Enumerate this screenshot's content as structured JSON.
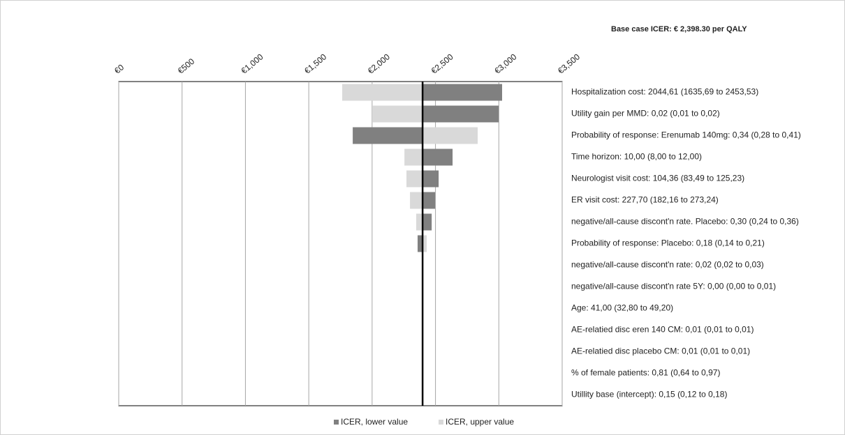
{
  "chart_data": {
    "type": "tornado",
    "title": "Base case ICER: € 2,398.30 per QALY",
    "base": 2398.3,
    "categories": [
      "Hospitalization cost: 2044,61 (1635,69 to 2453,53)",
      "Utility gain per MMD: 0,02 (0,01 to 0,02)",
      "Probability of response: Erenumab 140mg: 0,34 (0,28 to 0,41)",
      "Time horizon: 10,00 (8,00 to 12,00)",
      "Neurologist visit cost: 104,36 (83,49 to 125,23)",
      "ER visit cost: 227,70 (182,16 to 273,24)",
      "negative/all-cause discont'n rate. Placebo: 0,30 (0,24 to 0,36)",
      "Probability of response: Placebo: 0,18 (0,14 to 0,21)",
      "negative/all-cause discont'n rate: 0,02 (0,02 to 0,03)",
      "negative/all-cause discont'n rate 5Y: 0,00 (0,00 to 0,01)",
      "Age: 41,00 (32,80 to 49,20)",
      "AE-relatied disc eren 140 CM: 0,01 (0,01 to 0,01)",
      "AE-relatied disc placebo CM: 0,01 (0,01 to 0,01)",
      "% of female patients: 0,81 (0,64 to 0,97)",
      "Utillity base (intercept): 0,15 (0,12 to 0,18)"
    ],
    "series": [
      {
        "name": "ICER, lower value",
        "color": "#808080",
        "values": [
          3026,
          2999,
          1847,
          2635,
          2525,
          2497,
          2470,
          2359,
          2398.3,
          2398.3,
          2398.3,
          2398.3,
          2398.3,
          2398.3,
          2398.3
        ]
      },
      {
        "name": "ICER, upper value",
        "color": "#d9d9d9",
        "values": [
          1764,
          2001,
          2833,
          2255,
          2271,
          2299,
          2348,
          2431,
          2398.3,
          2398.3,
          2398.3,
          2398.3,
          2398.3,
          2398.3,
          2398.3
        ]
      }
    ],
    "xlim": [
      0,
      3500
    ],
    "xticks": [
      {
        "value": 0,
        "label": "€0"
      },
      {
        "value": 500,
        "label": "€500"
      },
      {
        "value": 1000,
        "label": "€1,000"
      },
      {
        "value": 1500,
        "label": "€1,500"
      },
      {
        "value": 2000,
        "label": "€2,000"
      },
      {
        "value": 2500,
        "label": "€2,500"
      },
      {
        "value": 3000,
        "label": "€3,000"
      },
      {
        "value": 3500,
        "label": "€3,500"
      }
    ],
    "grid": true
  }
}
